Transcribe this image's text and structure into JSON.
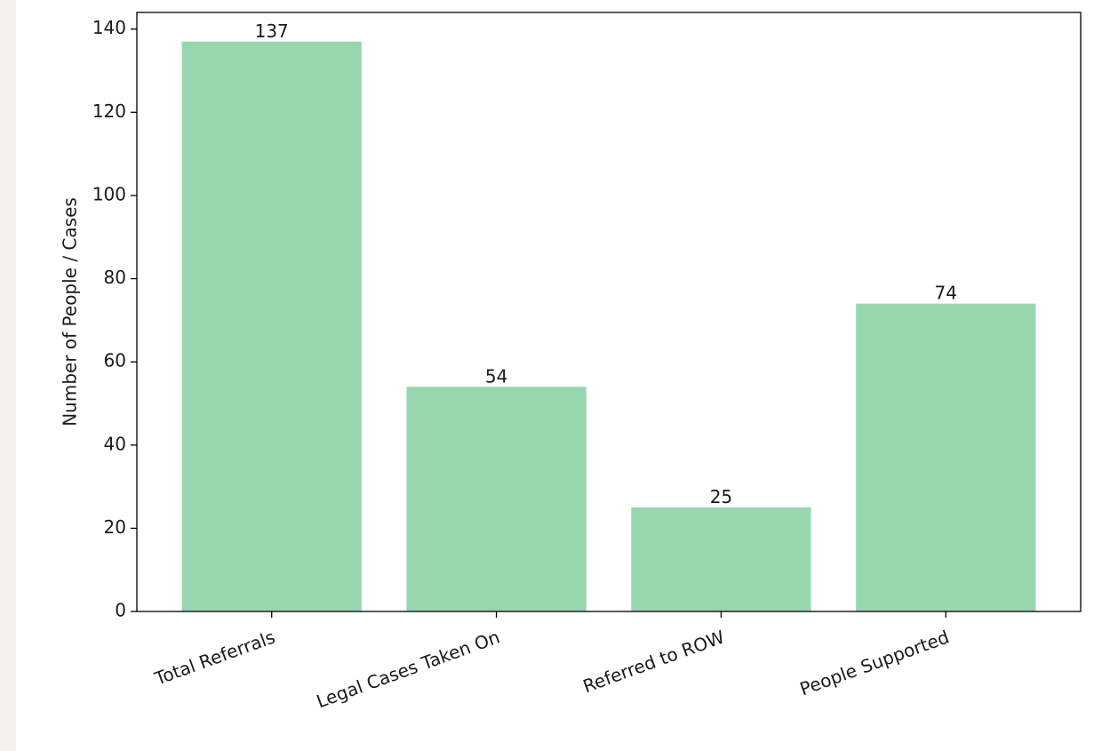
{
  "colors": {
    "bar": "#98d6b0",
    "axis": "#000000",
    "panel_background": "#ffffff",
    "page_background": "#f5f2ec"
  },
  "chart_data": {
    "type": "bar",
    "title": "",
    "xlabel": "",
    "ylabel": "Number of People / Cases",
    "categories": [
      "Total Referrals",
      "Legal Cases Taken On",
      "Referred to ROW",
      "People Supported"
    ],
    "values": [
      137,
      54,
      25,
      74
    ],
    "data_labels": [
      "137",
      "54",
      "25",
      "74"
    ],
    "ylim": [
      0,
      144
    ],
    "yticks": [
      0,
      20,
      40,
      60,
      80,
      100,
      120,
      140
    ],
    "ytick_labels": [
      "0",
      "20",
      "40",
      "60",
      "80",
      "100",
      "120",
      "140"
    ],
    "xtick_rotation_deg": -20,
    "grid": false,
    "legend": "none"
  }
}
